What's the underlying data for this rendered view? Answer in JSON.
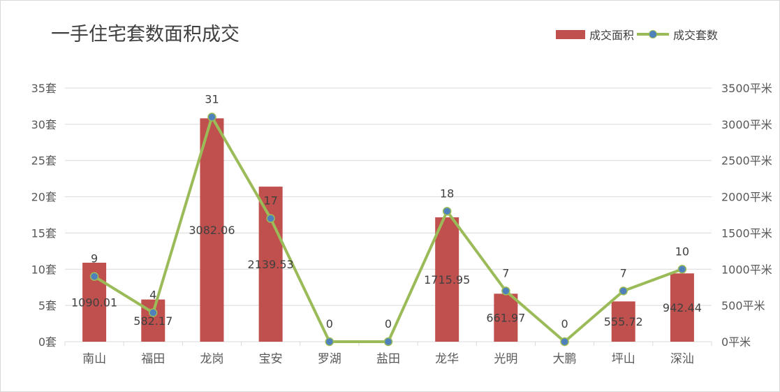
{
  "chart_data": {
    "type": "bar",
    "title": "一手住宅套数面积成交",
    "categories": [
      "南山",
      "福田",
      "龙岗",
      "宝安",
      "罗湖",
      "盐田",
      "龙华",
      "光明",
      "大鹏",
      "坪山",
      "深汕"
    ],
    "series": [
      {
        "name": "成交面积",
        "type": "bar",
        "axis": "right",
        "color": "#c0504d",
        "values": [
          1090.01,
          582.17,
          3082.06,
          2139.53,
          0,
          0,
          1715.95,
          661.97,
          0,
          555.72,
          942.44
        ],
        "labels": [
          "1090.01",
          "582.17",
          "3082.06",
          "2139.53",
          "",
          "",
          "1715.95",
          "661.97",
          "",
          "555.72",
          "942.44"
        ]
      },
      {
        "name": "成交套数",
        "type": "line",
        "axis": "left",
        "color": "#9bbb59",
        "marker_color": "#4f81bd",
        "values": [
          9,
          4,
          31,
          17,
          0,
          0,
          18,
          7,
          0,
          7,
          10
        ],
        "labels": [
          "9",
          "4",
          "31",
          "17",
          "0",
          "0",
          "18",
          "7",
          "0",
          "7",
          "10"
        ]
      }
    ],
    "y_left": {
      "range": [
        0,
        35
      ],
      "ticks": [
        0,
        5,
        10,
        15,
        20,
        25,
        30,
        35
      ],
      "tick_labels": [
        "0套",
        "5套",
        "10套",
        "15套",
        "20套",
        "25套",
        "30套",
        "35套"
      ]
    },
    "y_right": {
      "range": [
        0,
        3500
      ],
      "ticks": [
        0,
        500,
        1000,
        1500,
        2000,
        2500,
        3000,
        3500
      ],
      "tick_labels": [
        "0平米",
        "500平米",
        "1000平米",
        "1500平米",
        "2000平米",
        "2500平米",
        "3000平米",
        "3500平米"
      ]
    },
    "grid": true,
    "legend_position": "top-right"
  }
}
